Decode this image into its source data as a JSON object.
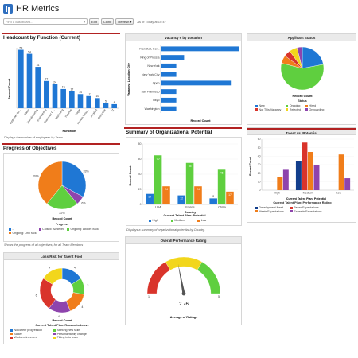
{
  "header": {
    "title": "HR Metrics",
    "search_placeholder": "Find a dashboard...",
    "edit_label": "Edit",
    "clone_label": "Clone",
    "refresh_label": "Refresh",
    "refresh_arrow": "▾",
    "as_of": "As of Today at 10:47"
  },
  "colors": {
    "blue": "#1f77d4",
    "green": "#5fcf3f",
    "orange": "#f07d1a",
    "purple": "#8e44ad",
    "red": "#d9342b",
    "yellow": "#f2d61b",
    "navy": "#123e8c",
    "accent_red": "#b22222"
  },
  "headcount": {
    "title": "Headcount by Function (Current)",
    "footnote": "Displays the number of employees by Team",
    "chart_data": {
      "type": "bar",
      "categories": [
        "Customer Se...",
        "Sales",
        "Manufacturing",
        "Engineering",
        "Customer O...",
        "Marketing",
        "Finance",
        "Legal",
        "Human Reso...",
        "Product",
        "Executive",
        "IT"
      ],
      "values": [
        58,
        54,
        41,
        27,
        24,
        19,
        17,
        14,
        12,
        10,
        5,
        4
      ],
      "xlabel": "Function",
      "ylabel": "Record Count"
    }
  },
  "vacancy": {
    "title": "Vacancy's by Location",
    "chart_data": {
      "type": "bar",
      "orientation": "horizontal",
      "categories": [
        "Frankfurt, Ger...",
        "King of Prussia",
        "New York",
        "New York City",
        "Open",
        "San Francisco",
        "Tokyo",
        "Washington"
      ],
      "values": [
        10,
        3,
        2,
        2,
        9,
        2,
        2,
        2
      ],
      "xlabel": "Record Count",
      "ylabel": "Vacancy: Location City"
    }
  },
  "applicant": {
    "title": "Applicant Status",
    "legend_title": "Status",
    "axis_label": "Record Count",
    "chart_data": {
      "type": "pie",
      "labels": [
        "New",
        "Ongoing",
        "Hired",
        "Not This Vacancy",
        "Rejected",
        "Onboarding"
      ],
      "values": [
        22,
        57,
        6,
        5,
        6,
        4
      ],
      "colors": [
        "#1f77d4",
        "#5fcf3f",
        "#f07d1a",
        "#d9342b",
        "#f2d61b",
        "#8e44ad"
      ]
    }
  },
  "objectives": {
    "title": "Progress of Objectives",
    "footnote": "Shows the progress of all objectives, for all Team Members",
    "axis_label": "Record Count",
    "legend_title": "Progress",
    "chart_data": {
      "type": "pie",
      "labels": [
        "-",
        "Closed: Achieved",
        "Ongoing: Above Track",
        "Ongoing: On Track"
      ],
      "values": [
        33,
        6,
        22,
        39
      ],
      "slice_labels": [
        "33%",
        "6%",
        "22%",
        "39%"
      ],
      "colors": [
        "#1f77d4",
        "#8e44ad",
        "#5fcf3f",
        "#f07d1a"
      ]
    }
  },
  "org_potential": {
    "title": "Summary of Organizational Potential",
    "footnote": "Displays a summary of organizational potential by Country.",
    "legend_title": "Current Talent Plan: Potential",
    "chart_data": {
      "type": "bar",
      "categories": [
        "USA",
        "France",
        "China"
      ],
      "series": [
        {
          "name": "High",
          "values": [
            14,
            12,
            8
          ]
        },
        {
          "name": "Medium",
          "values": [
            65,
            55,
            46
          ]
        },
        {
          "name": "Low",
          "values": [
            24,
            24,
            17
          ]
        }
      ],
      "xlabel": "Country",
      "ylabel": "Record Count",
      "ylim": [
        0,
        80
      ],
      "yticks": [
        0,
        20,
        40,
        60,
        80
      ]
    }
  },
  "talent": {
    "title": "Talent vs. Potential",
    "legend_title": "Current Talent Plan: Performance Rating",
    "axis_title": "Current Talent Plan: Potential",
    "chart_data": {
      "type": "bar",
      "categories": [
        "High",
        "Medium",
        "Low"
      ],
      "series": [
        {
          "name": "Development Need",
          "values": [
            0,
            34,
            0
          ]
        },
        {
          "name": "Below Expectations",
          "values": [
            0,
            56,
            0
          ]
        },
        {
          "name": "Meets Expectations",
          "values": [
            15,
            45,
            42
          ]
        },
        {
          "name": "Exceeds Expectations",
          "values": [
            24,
            30,
            14
          ]
        }
      ],
      "xlabel": "Current Talent Plan: Potential",
      "ylabel": "Record Count",
      "ylim": [
        0,
        60
      ],
      "yticks": [
        0,
        10,
        20,
        30,
        40,
        50,
        60
      ]
    }
  },
  "loss_risk": {
    "title": "Loss Risk for Talent Pool",
    "axis_label": "Record Count",
    "legend_title": "Current Talent Plan: Reason to Leave",
    "chart_data": {
      "type": "pie",
      "style": "donut",
      "labels": [
        "No career progression",
        "Seeking new skills",
        "Salary",
        "Personal/family change",
        "Work environment",
        "Fitting in to team"
      ],
      "values": [
        4,
        3,
        4,
        4,
        6,
        4
      ],
      "colors": [
        "#1f77d4",
        "#5fcf3f",
        "#f07d1a",
        "#8e44ad",
        "#d9342b",
        "#f2d61b"
      ]
    }
  },
  "performance": {
    "title": "Overall Performance Rating",
    "axis_label": "Average of Ratings",
    "chart_data": {
      "type": "gauge",
      "min": 1,
      "max": 5,
      "value": 2.76,
      "value_label": "2.76"
    }
  }
}
